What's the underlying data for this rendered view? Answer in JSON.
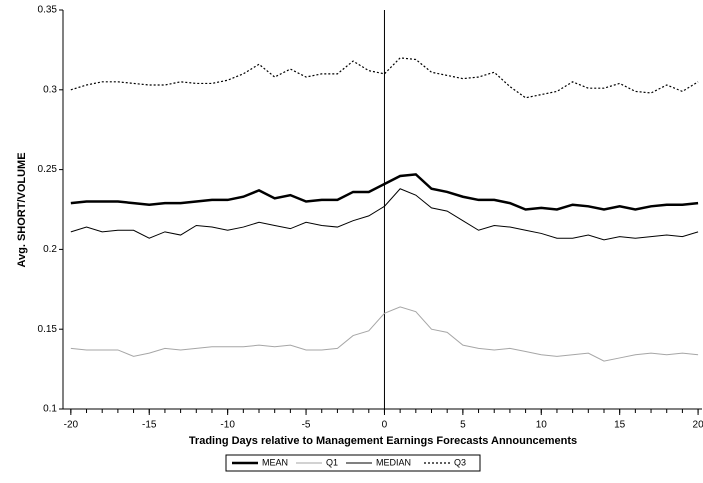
{
  "chart_data": {
    "type": "line",
    "xlabel": "Trading Days relative to Management Earnings Forecasts Announcements",
    "ylabel": "Avg. SHORT/VOLUME",
    "x": [
      -20,
      -19,
      -18,
      -17,
      -16,
      -15,
      -14,
      -13,
      -12,
      -11,
      -10,
      -9,
      -8,
      -7,
      -6,
      -5,
      -4,
      -3,
      -2,
      -1,
      0,
      1,
      2,
      3,
      4,
      5,
      6,
      7,
      8,
      9,
      10,
      11,
      12,
      13,
      14,
      15,
      16,
      17,
      18,
      19,
      20
    ],
    "series": [
      {
        "name": "MEAN",
        "color": "#000000",
        "line_width": 2.5,
        "dash": "solid",
        "values": [
          0.229,
          0.23,
          0.23,
          0.23,
          0.229,
          0.228,
          0.229,
          0.229,
          0.23,
          0.231,
          0.231,
          0.233,
          0.237,
          0.232,
          0.234,
          0.23,
          0.231,
          0.231,
          0.236,
          0.236,
          0.241,
          0.246,
          0.247,
          0.238,
          0.236,
          0.233,
          0.231,
          0.231,
          0.229,
          0.225,
          0.226,
          0.225,
          0.228,
          0.227,
          0.225,
          0.227,
          0.225,
          0.227,
          0.228,
          0.228,
          0.229
        ]
      },
      {
        "name": "Q1",
        "color": "#a6a6a6",
        "line_width": 1,
        "dash": "solid",
        "values": [
          0.138,
          0.137,
          0.137,
          0.137,
          0.133,
          0.135,
          0.138,
          0.137,
          0.138,
          0.139,
          0.139,
          0.139,
          0.14,
          0.139,
          0.14,
          0.137,
          0.137,
          0.138,
          0.146,
          0.149,
          0.16,
          0.164,
          0.161,
          0.15,
          0.148,
          0.14,
          0.138,
          0.137,
          0.138,
          0.136,
          0.134,
          0.133,
          0.134,
          0.135,
          0.13,
          0.132,
          0.134,
          0.135,
          0.134,
          0.135,
          0.134
        ]
      },
      {
        "name": "MEDIAN",
        "color": "#000000",
        "line_width": 1,
        "dash": "solid",
        "values": [
          0.211,
          0.214,
          0.211,
          0.212,
          0.212,
          0.207,
          0.211,
          0.209,
          0.215,
          0.214,
          0.212,
          0.214,
          0.217,
          0.215,
          0.213,
          0.217,
          0.215,
          0.214,
          0.218,
          0.221,
          0.227,
          0.238,
          0.234,
          0.226,
          0.224,
          0.218,
          0.212,
          0.215,
          0.214,
          0.212,
          0.21,
          0.207,
          0.207,
          0.209,
          0.206,
          0.208,
          0.207,
          0.208,
          0.209,
          0.208,
          0.211
        ]
      },
      {
        "name": "Q3",
        "color": "#000000",
        "line_width": 1.2,
        "dash": "dotted",
        "values": [
          0.3,
          0.303,
          0.305,
          0.305,
          0.304,
          0.303,
          0.303,
          0.305,
          0.304,
          0.304,
          0.306,
          0.31,
          0.316,
          0.308,
          0.313,
          0.308,
          0.31,
          0.31,
          0.318,
          0.312,
          0.31,
          0.32,
          0.319,
          0.311,
          0.309,
          0.307,
          0.308,
          0.311,
          0.302,
          0.295,
          0.297,
          0.299,
          0.305,
          0.301,
          0.301,
          0.304,
          0.299,
          0.298,
          0.303,
          0.299,
          0.305
        ]
      }
    ],
    "xlim": [
      -20.5,
      20.25
    ],
    "xticks": [
      -20,
      -15,
      -10,
      -5,
      0,
      5,
      10,
      15,
      20
    ],
    "ylim": [
      0.1,
      0.35
    ],
    "yticks": [
      0.1,
      0.15,
      0.2,
      0.25,
      0.3,
      0.35
    ],
    "grid": false,
    "legend": "bottom",
    "zero_line": true
  }
}
